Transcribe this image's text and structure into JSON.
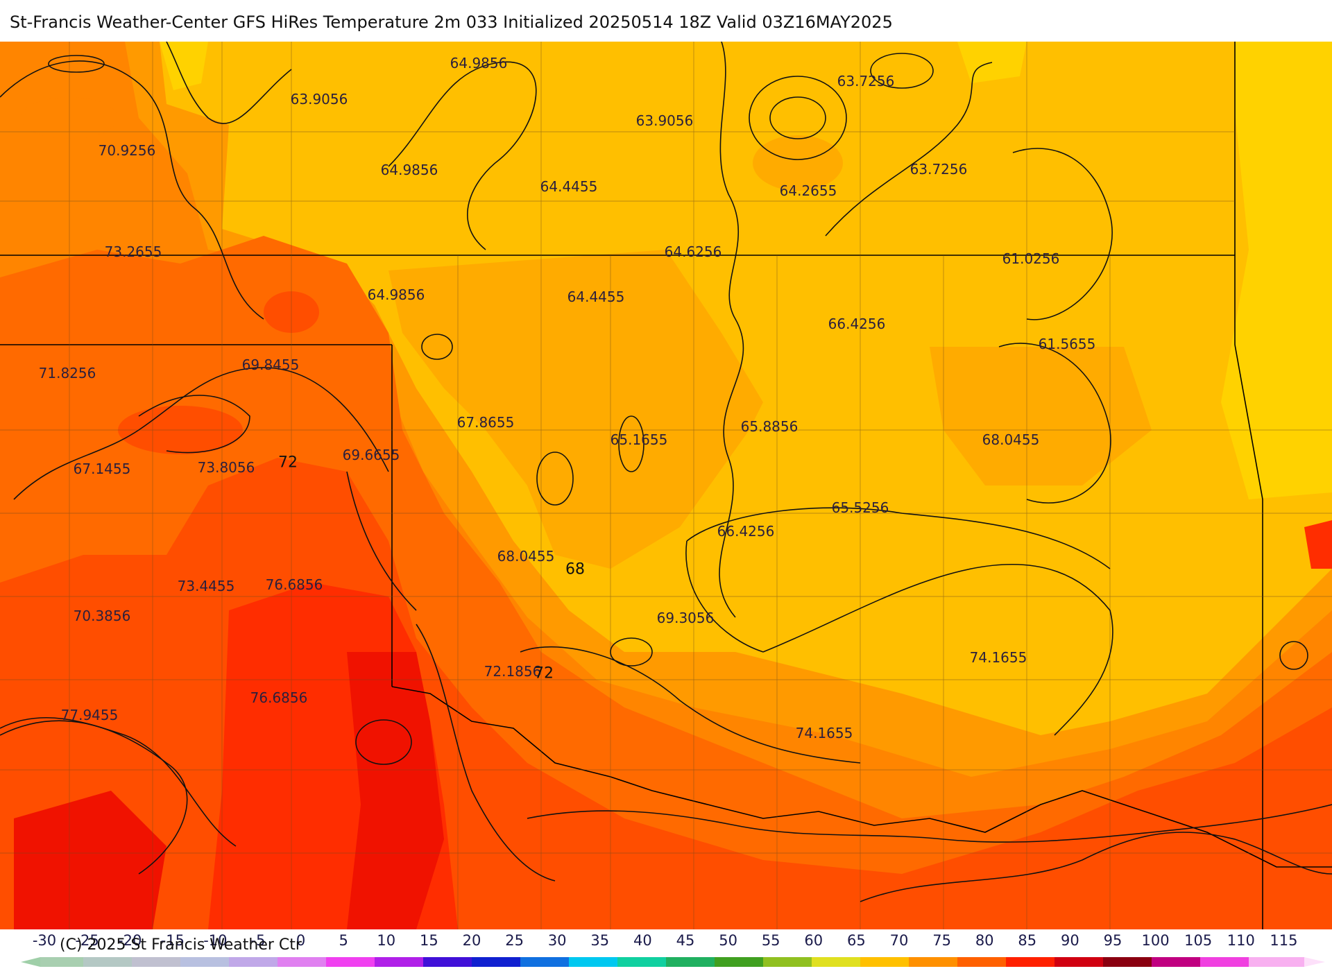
{
  "title": "St-Francis Weather-Center GFS HiRes Temperature 2m  033 Initialized 20250514 18Z Valid 03Z16MAY2025",
  "copyright": "(C) 2025 St Francis Weather Ctr",
  "colorbar_ticks": [
    "-30",
    "-25",
    "-20",
    "-15",
    "-10",
    "-5",
    "0",
    "5",
    "10",
    "15",
    "20",
    "25",
    "30",
    "35",
    "40",
    "45",
    "50",
    "55",
    "60",
    "65",
    "70",
    "75",
    "80",
    "85",
    "90",
    "95",
    "100",
    "105",
    "110",
    "115"
  ],
  "colors": {
    "t60": "#ffd200",
    "t64": "#ffbf00",
    "t66": "#ffab00",
    "t68": "#ff9a00",
    "t70": "#ff8500",
    "t72": "#ff6a00",
    "t74": "#ff4e00",
    "t76": "#ff2d00",
    "t78": "#f01200"
  },
  "value_labels": [
    "64.9856",
    "63.9056",
    "63.9056",
    "63.7256",
    "70.9256",
    "64.9856",
    "64.4455",
    "64.2655",
    "63.7256",
    "73.2655",
    "64.6256",
    "61.0256",
    "64.9856",
    "64.4455",
    "66.4256",
    "71.8256",
    "69.8455",
    "61.5655",
    "67.8655",
    "65.1655",
    "65.8856",
    "68.0455",
    "69.6655",
    "67.1455",
    "73.8056",
    "65.5256",
    "66.4256",
    "68.0455",
    "73.4455",
    "76.6856",
    "70.3856",
    "69.3056",
    "74.1655",
    "72.1856",
    "76.6856",
    "77.9455",
    "74.1655"
  ],
  "contour_labels": [
    "72",
    "68",
    "72"
  ]
}
